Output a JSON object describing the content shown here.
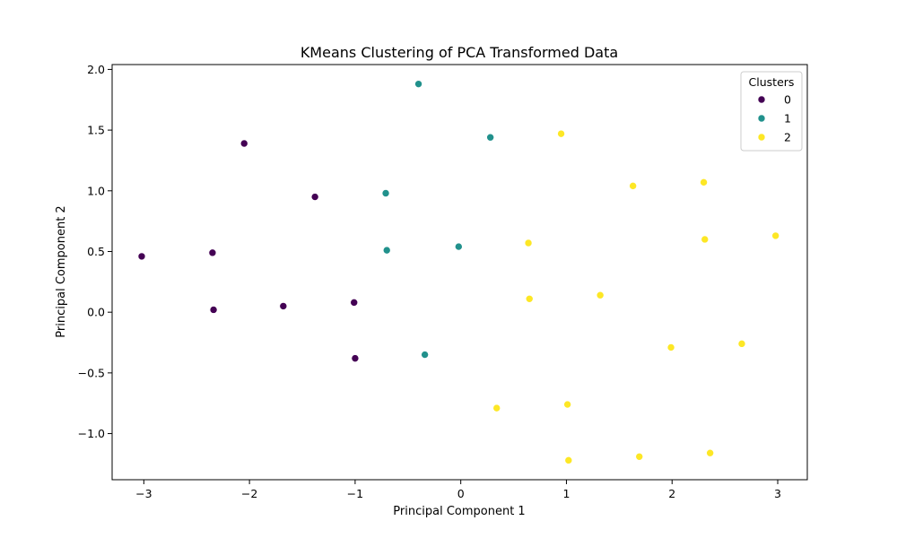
{
  "chart_data": {
    "type": "scatter",
    "title": "KMeans Clustering of PCA Transformed Data",
    "xlabel": "Principal Component 1",
    "ylabel": "Principal Component 2",
    "xlim": [
      -3.3,
      3.28
    ],
    "ylim": [
      -1.38,
      2.04
    ],
    "xticks": [
      -3,
      -2,
      -1,
      0,
      1,
      2,
      3
    ],
    "xtick_labels": [
      "−3",
      "−2",
      "−1",
      "0",
      "1",
      "2",
      "3"
    ],
    "yticks": [
      -1.0,
      -0.5,
      0.0,
      0.5,
      1.0,
      1.5,
      2.0
    ],
    "ytick_labels": [
      "−1.0",
      "−0.5",
      "0.0",
      "0.5",
      "1.0",
      "1.5",
      "2.0"
    ],
    "grid": false,
    "legend": {
      "title": "Clusters",
      "placement": "top-right"
    },
    "series": [
      {
        "name": "0",
        "color": "#440154",
        "points": [
          [
            -3.02,
            0.46
          ],
          [
            -2.35,
            0.49
          ],
          [
            -2.34,
            0.02
          ],
          [
            -2.05,
            1.39
          ],
          [
            -1.68,
            0.05
          ],
          [
            -1.38,
            0.95
          ],
          [
            -1.01,
            0.08
          ],
          [
            -1.0,
            -0.38
          ]
        ]
      },
      {
        "name": "1",
        "color": "#21918c",
        "points": [
          [
            -0.4,
            1.88
          ],
          [
            0.28,
            1.44
          ],
          [
            -0.71,
            0.98
          ],
          [
            -0.7,
            0.51
          ],
          [
            -0.02,
            0.54
          ],
          [
            -0.34,
            -0.35
          ]
        ]
      },
      {
        "name": "2",
        "color": "#fde725",
        "points": [
          [
            0.95,
            1.47
          ],
          [
            1.63,
            1.04
          ],
          [
            2.3,
            1.07
          ],
          [
            2.31,
            0.6
          ],
          [
            2.98,
            0.63
          ],
          [
            0.64,
            0.57
          ],
          [
            0.65,
            0.11
          ],
          [
            1.32,
            0.14
          ],
          [
            1.99,
            -0.29
          ],
          [
            2.66,
            -0.26
          ],
          [
            0.34,
            -0.79
          ],
          [
            1.01,
            -0.76
          ],
          [
            1.02,
            -1.22
          ],
          [
            1.69,
            -1.19
          ],
          [
            2.36,
            -1.16
          ]
        ]
      }
    ]
  }
}
